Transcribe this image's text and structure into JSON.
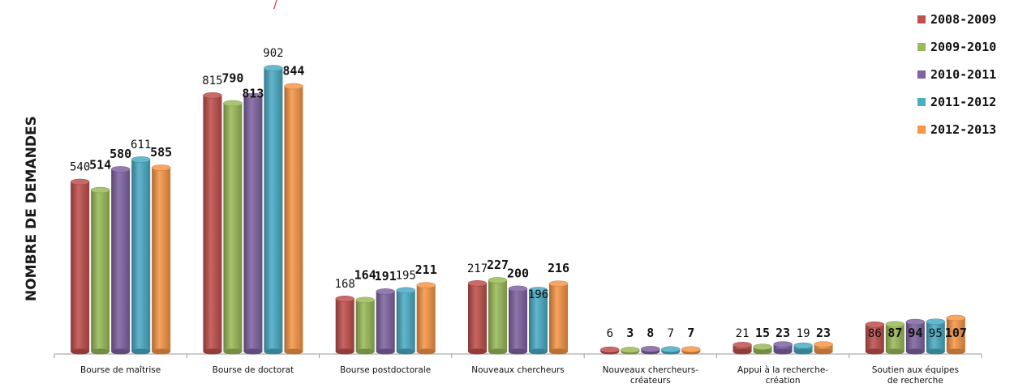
{
  "title_fragment": "/",
  "chart_data": {
    "type": "bar",
    "title": "",
    "xlabel": "",
    "ylabel": "NOMBRE DE DEMANDES",
    "ylim": [
      0,
      950
    ],
    "grid": false,
    "legend_position": "top-right",
    "categories": [
      [
        "Bourse de maîtrise"
      ],
      [
        "Bourse de doctorat"
      ],
      [
        "Bourse postdoctorale"
      ],
      [
        "Nouveaux chercheurs"
      ],
      [
        "Nouveaux chercheurs-",
        "créateurs"
      ],
      [
        "Appui à la recherche-",
        "création"
      ],
      [
        "Soutien aux équipes",
        "de recherche"
      ]
    ],
    "series": [
      {
        "name": "2008-2009",
        "color": "#c0504d",
        "values": [
          540,
          815,
          168,
          217,
          6,
          21,
          86
        ]
      },
      {
        "name": "2009-2010",
        "color": "#9bbb59",
        "values": [
          514,
          790,
          164,
          227,
          3,
          15,
          87
        ]
      },
      {
        "name": "2010-2011",
        "color": "#8064a2",
        "values": [
          580,
          813,
          191,
          200,
          8,
          23,
          94
        ]
      },
      {
        "name": "2011-2012",
        "color": "#4bacc6",
        "values": [
          611,
          902,
          195,
          196,
          7,
          19,
          95
        ]
      },
      {
        "name": "2012-2013",
        "color": "#f79646",
        "values": [
          585,
          844,
          211,
          216,
          7,
          23,
          107
        ]
      }
    ]
  }
}
